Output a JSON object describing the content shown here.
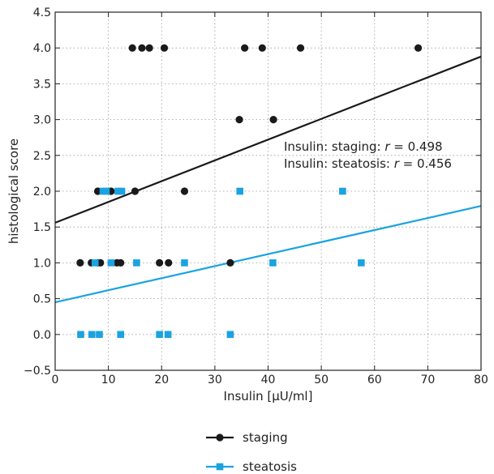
{
  "chart_data": {
    "type": "scatter",
    "xlabel": "Insulin [μU/ml]",
    "ylabel": "histological score",
    "xlim": [
      0,
      80
    ],
    "ylim": [
      -0.5,
      4.5
    ],
    "x_ticks": [
      0,
      10,
      20,
      30,
      40,
      50,
      60,
      70,
      80
    ],
    "y_ticks": [
      -0.5,
      0.0,
      0.5,
      1.0,
      1.5,
      2.0,
      2.5,
      3.0,
      3.5,
      4.0,
      4.5
    ],
    "y_tick_labels": [
      "−0.5",
      "0.0",
      "0.5",
      "1.0",
      "1.5",
      "2.0",
      "2.5",
      "3.0",
      "3.5",
      "4.0",
      "4.5"
    ],
    "grid": true,
    "legend_position": "bottom-center",
    "annotations": [
      {
        "prefix": "Insulin: staging: ",
        "r_symbol": "r",
        "suffix": " = 0.498"
      },
      {
        "prefix": "Insulin: steatosis: ",
        "r_symbol": "r",
        "suffix": " = 0.456"
      }
    ],
    "series": [
      {
        "name": "staging",
        "marker": "circle",
        "color": "#1a1a1a",
        "points": [
          [
            14.5,
            4
          ],
          [
            16.3,
            4
          ],
          [
            17.7,
            4
          ],
          [
            20.5,
            4
          ],
          [
            35.6,
            4
          ],
          [
            38.9,
            4
          ],
          [
            46.1,
            4
          ],
          [
            68.2,
            4
          ],
          [
            34.6,
            3
          ],
          [
            41.0,
            3
          ],
          [
            8.0,
            2
          ],
          [
            10.5,
            2
          ],
          [
            15.0,
            2
          ],
          [
            24.3,
            2
          ],
          [
            4.7,
            1
          ],
          [
            6.8,
            1
          ],
          [
            8.0,
            1
          ],
          [
            8.5,
            1
          ],
          [
            11.6,
            1
          ],
          [
            12.3,
            1
          ],
          [
            19.6,
            1
          ],
          [
            21.3,
            1
          ],
          [
            32.9,
            1
          ]
        ],
        "fit": {
          "intercept": 1.56,
          "slope": 0.029
        }
      },
      {
        "name": "steatosis",
        "marker": "square",
        "color": "#1aa3e0",
        "points": [
          [
            9.0,
            2
          ],
          [
            9.6,
            2
          ],
          [
            11.8,
            2
          ],
          [
            12.5,
            2
          ],
          [
            34.7,
            2
          ],
          [
            54.0,
            2
          ],
          [
            7.5,
            1
          ],
          [
            10.5,
            1
          ],
          [
            15.3,
            1
          ],
          [
            24.3,
            1
          ],
          [
            40.9,
            1
          ],
          [
            57.5,
            1
          ],
          [
            4.8,
            0
          ],
          [
            6.9,
            0
          ],
          [
            8.3,
            0
          ],
          [
            12.3,
            0
          ],
          [
            19.6,
            0
          ],
          [
            21.2,
            0
          ],
          [
            32.9,
            0
          ]
        ],
        "fit": {
          "intercept": 0.45,
          "slope": 0.0168
        }
      }
    ]
  }
}
